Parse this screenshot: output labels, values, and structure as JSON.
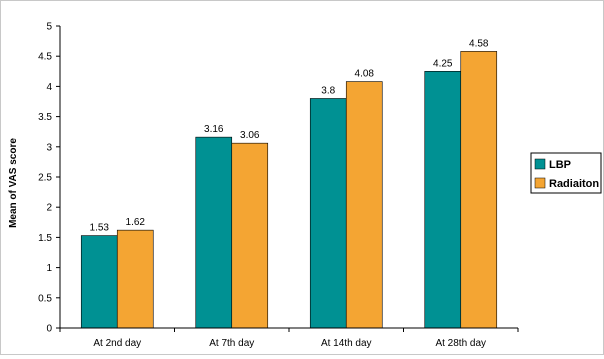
{
  "chart_data": {
    "type": "bar",
    "categories": [
      "At 2nd day",
      "At 7th day",
      "At 14th day",
      "At 28th day"
    ],
    "series": [
      {
        "name": "LBP",
        "values": [
          1.53,
          3.16,
          3.8,
          4.25
        ],
        "color": "#009193"
      },
      {
        "name": "Radiaiton",
        "values": [
          1.62,
          3.06,
          4.08,
          4.58
        ],
        "color": "#f4a533"
      }
    ],
    "data_labels": [
      [
        "1.53",
        "3.16",
        "3.8",
        "4.25"
      ],
      [
        "1.62",
        "3.06",
        "4.08",
        "4.58"
      ]
    ],
    "title": "",
    "xlabel": "",
    "ylabel": "Mean  of VAS score",
    "ylim": [
      0,
      5
    ],
    "yticks": [
      "0",
      "0.5",
      "1",
      "1.5",
      "2",
      "2.5",
      "3",
      "3.5",
      "4",
      "4.5",
      "5"
    ],
    "grid": false,
    "legend": "right"
  }
}
